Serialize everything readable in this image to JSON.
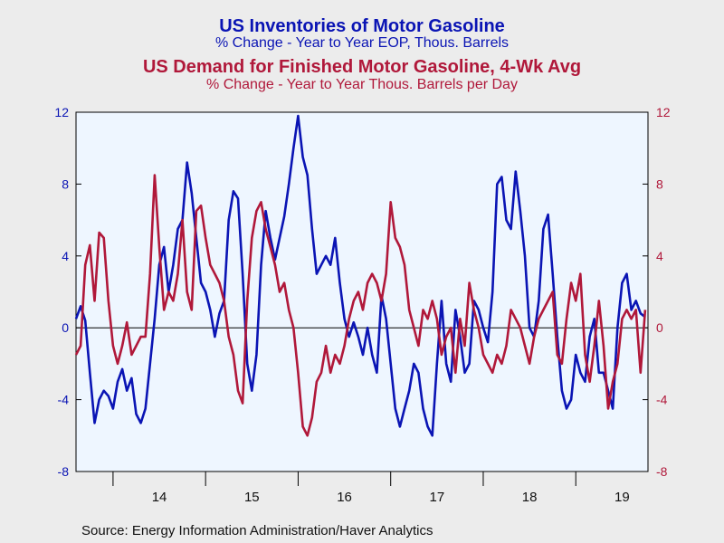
{
  "titles": {
    "title1": "US Inventories of Motor Gasoline",
    "subtitle1": "% Change - Year to Year    EOP, Thous. Barrels",
    "title2": "US Demand for Finished Motor Gasoline, 4-Wk Avg",
    "subtitle2": "% Change - Year to Year    Thous. Barrels per Day"
  },
  "source": "Source:  Energy Information Administration/Haver Analytics",
  "colors": {
    "inventories": "#0a14b4",
    "demand": "#b0183a",
    "plot_bg": "#eef6ff",
    "page_bg": "#ececec"
  },
  "chart_data": {
    "type": "line",
    "xlim": [
      2013.6,
      2019.78
    ],
    "ylim_left": [
      -8,
      12
    ],
    "ylim_right": [
      -8,
      12
    ],
    "yticks": [
      -8,
      -4,
      0,
      4,
      8,
      12
    ],
    "xticks": [
      "14",
      "15",
      "16",
      "17",
      "18",
      "19"
    ],
    "grid": false,
    "zero_line": true,
    "series": [
      {
        "name": "US Inventories of Motor Gasoline",
        "axis": "left",
        "x": [
          2013.6,
          2013.65,
          2013.7,
          2013.75,
          2013.8,
          2013.85,
          2013.9,
          2013.95,
          2014.0,
          2014.05,
          2014.1,
          2014.15,
          2014.2,
          2014.25,
          2014.3,
          2014.35,
          2014.4,
          2014.45,
          2014.5,
          2014.55,
          2014.6,
          2014.65,
          2014.7,
          2014.75,
          2014.8,
          2014.85,
          2014.9,
          2014.95,
          2015.0,
          2015.05,
          2015.1,
          2015.15,
          2015.2,
          2015.25,
          2015.3,
          2015.35,
          2015.4,
          2015.45,
          2015.5,
          2015.55,
          2015.6,
          2015.65,
          2015.7,
          2015.75,
          2015.8,
          2015.85,
          2015.9,
          2015.95,
          2016.0,
          2016.05,
          2016.1,
          2016.15,
          2016.2,
          2016.25,
          2016.3,
          2016.35,
          2016.4,
          2016.45,
          2016.5,
          2016.55,
          2016.6,
          2016.65,
          2016.7,
          2016.75,
          2016.8,
          2016.85,
          2016.9,
          2016.95,
          2017.0,
          2017.05,
          2017.1,
          2017.15,
          2017.2,
          2017.25,
          2017.3,
          2017.35,
          2017.4,
          2017.45,
          2017.5,
          2017.55,
          2017.6,
          2017.65,
          2017.7,
          2017.75,
          2017.8,
          2017.85,
          2017.9,
          2017.95,
          2018.0,
          2018.05,
          2018.1,
          2018.15,
          2018.2,
          2018.25,
          2018.3,
          2018.35,
          2018.4,
          2018.45,
          2018.5,
          2018.55,
          2018.6,
          2018.65,
          2018.7,
          2018.75,
          2018.8,
          2018.85,
          2018.9,
          2018.95,
          2019.0,
          2019.05,
          2019.1,
          2019.15,
          2019.2,
          2019.25,
          2019.3,
          2019.35,
          2019.4,
          2019.45,
          2019.5,
          2019.55,
          2019.6,
          2019.65,
          2019.7,
          2019.75
        ],
        "values": [
          0.5,
          1.2,
          0.4,
          -2.5,
          -5.3,
          -4.0,
          -3.5,
          -3.8,
          -4.5,
          -3.0,
          -2.3,
          -3.5,
          -2.8,
          -4.8,
          -5.3,
          -4.5,
          -2.0,
          0.5,
          3.5,
          4.5,
          2.0,
          3.5,
          5.5,
          6.0,
          9.2,
          7.5,
          5.0,
          2.5,
          2.0,
          1.0,
          -0.5,
          0.8,
          1.5,
          6.0,
          7.6,
          7.2,
          3.0,
          -2.0,
          -3.5,
          -1.5,
          3.5,
          6.5,
          5.0,
          3.8,
          5.0,
          6.2,
          8.0,
          10.0,
          11.8,
          9.5,
          8.5,
          5.5,
          3.0,
          3.5,
          4.0,
          3.5,
          5.0,
          2.5,
          0.5,
          -0.5,
          0.3,
          -0.5,
          -1.5,
          0.0,
          -1.5,
          -2.5,
          1.8,
          0.5,
          -2.0,
          -4.5,
          -5.5,
          -4.5,
          -3.5,
          -2.0,
          -2.5,
          -4.5,
          -5.5,
          -6.0,
          -2.0,
          1.5,
          -2.0,
          -3.0,
          1.0,
          -0.5,
          -2.5,
          -2.0,
          1.5,
          1.0,
          0.0,
          -0.8,
          2.0,
          8.0,
          8.4,
          6.0,
          5.5,
          8.7,
          6.5,
          4.0,
          0.0,
          -0.5,
          1.5,
          5.5,
          6.3,
          3.0,
          -0.5,
          -3.5,
          -4.5,
          -4.0,
          -1.5,
          -2.5,
          -3.0,
          -0.5,
          0.5,
          -2.5,
          -2.5,
          -3.5,
          -4.5,
          0.0,
          2.5,
          3.0,
          1.0,
          1.5,
          0.8,
          0.6
        ]
      },
      {
        "name": "US Demand for Finished Motor Gasoline, 4-Wk Avg",
        "axis": "right",
        "x": [
          2013.6,
          2013.65,
          2013.7,
          2013.75,
          2013.8,
          2013.85,
          2013.9,
          2013.95,
          2014.0,
          2014.05,
          2014.1,
          2014.15,
          2014.2,
          2014.25,
          2014.3,
          2014.35,
          2014.4,
          2014.45,
          2014.5,
          2014.55,
          2014.6,
          2014.65,
          2014.7,
          2014.75,
          2014.8,
          2014.85,
          2014.9,
          2014.95,
          2015.0,
          2015.05,
          2015.1,
          2015.15,
          2015.2,
          2015.25,
          2015.3,
          2015.35,
          2015.4,
          2015.45,
          2015.5,
          2015.55,
          2015.6,
          2015.65,
          2015.7,
          2015.75,
          2015.8,
          2015.85,
          2015.9,
          2015.95,
          2016.0,
          2016.05,
          2016.1,
          2016.15,
          2016.2,
          2016.25,
          2016.3,
          2016.35,
          2016.4,
          2016.45,
          2016.5,
          2016.55,
          2016.6,
          2016.65,
          2016.7,
          2016.75,
          2016.8,
          2016.85,
          2016.9,
          2016.95,
          2017.0,
          2017.05,
          2017.1,
          2017.15,
          2017.2,
          2017.25,
          2017.3,
          2017.35,
          2017.4,
          2017.45,
          2017.5,
          2017.55,
          2017.6,
          2017.65,
          2017.7,
          2017.75,
          2017.8,
          2017.85,
          2017.9,
          2017.95,
          2018.0,
          2018.05,
          2018.1,
          2018.15,
          2018.2,
          2018.25,
          2018.3,
          2018.35,
          2018.4,
          2018.45,
          2018.5,
          2018.55,
          2018.6,
          2018.65,
          2018.7,
          2018.75,
          2018.8,
          2018.85,
          2018.9,
          2018.95,
          2019.0,
          2019.05,
          2019.1,
          2019.15,
          2019.2,
          2019.25,
          2019.3,
          2019.35,
          2019.4,
          2019.45,
          2019.5,
          2019.55,
          2019.6,
          2019.65,
          2019.7,
          2019.75
        ],
        "values": [
          -1.5,
          -1.0,
          3.5,
          4.6,
          1.5,
          5.3,
          5.0,
          1.5,
          -1.0,
          -2.0,
          -1.0,
          0.3,
          -1.5,
          -1.0,
          -0.5,
          -0.5,
          3.0,
          8.5,
          4.5,
          1.0,
          2.0,
          1.5,
          3.0,
          6.0,
          2.0,
          1.0,
          6.5,
          6.8,
          5.0,
          3.5,
          3.0,
          2.5,
          1.5,
          -0.5,
          -1.5,
          -3.5,
          -4.2,
          1.5,
          5.0,
          6.5,
          7.0,
          5.5,
          4.5,
          3.5,
          2.0,
          2.5,
          1.0,
          0.0,
          -2.5,
          -5.5,
          -6.0,
          -5.0,
          -3.0,
          -2.5,
          -1.0,
          -2.5,
          -1.5,
          -2.0,
          -1.0,
          0.5,
          1.5,
          2.0,
          1.0,
          2.5,
          3.0,
          2.5,
          1.5,
          3.0,
          7.0,
          5.0,
          4.5,
          3.5,
          1.0,
          0.0,
          -1.0,
          1.0,
          0.5,
          1.5,
          0.5,
          -1.5,
          -0.5,
          0.0,
          -2.5,
          0.5,
          -1.0,
          2.5,
          1.0,
          0.0,
          -1.5,
          -2.0,
          -2.5,
          -1.5,
          -2.0,
          -1.0,
          1.0,
          0.5,
          0.0,
          -1.0,
          -2.0,
          -0.5,
          0.5,
          1.0,
          1.5,
          2.0,
          -1.5,
          -2.0,
          0.5,
          2.5,
          1.5,
          3.0,
          -1.5,
          -3.0,
          -1.0,
          1.5,
          -1.0,
          -4.5,
          -3.0,
          -2.0,
          0.5,
          1.0,
          0.5,
          1.0,
          -2.5,
          1.0
        ]
      }
    ]
  }
}
